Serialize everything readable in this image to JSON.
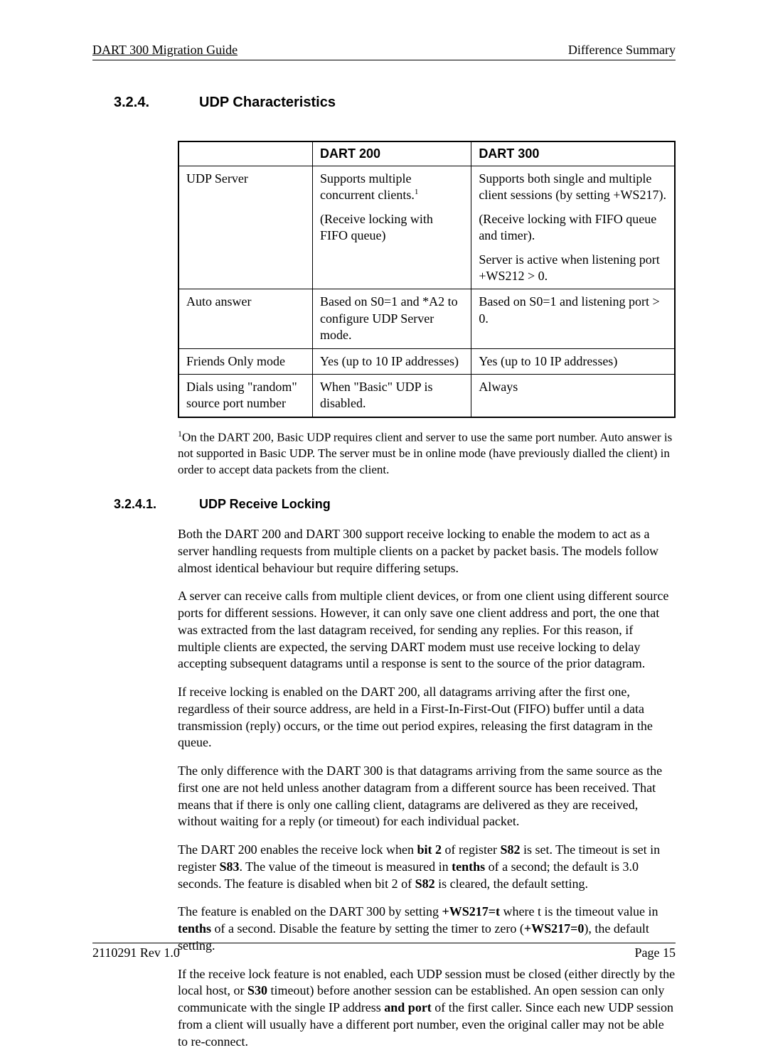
{
  "header": {
    "left": "DART 300 Migration Guide",
    "right": "Difference Summary"
  },
  "section": {
    "number": "3.2.4.",
    "title": "UDP Characteristics"
  },
  "table": {
    "columns": [
      "",
      "DART 200",
      "DART 300"
    ],
    "rows": [
      {
        "label": "UDP Server",
        "c1": [
          "Supports multiple concurrent clients.¹",
          "(Receive locking with FIFO queue)"
        ],
        "c2": [
          "Supports both single and multiple client sessions (by setting +WS217).",
          "(Receive locking with FIFO queue and timer).",
          "Server is active when listening port +WS212 > 0."
        ]
      },
      {
        "label": "Auto answer",
        "c1": [
          "Based on S0=1 and *A2 to configure UDP Server mode."
        ],
        "c2": [
          "Based on S0=1 and listening port > 0."
        ]
      },
      {
        "label": "Friends Only mode",
        "c1": [
          "Yes (up to 10 IP addresses)"
        ],
        "c2": [
          "Yes (up to 10 IP addresses)"
        ]
      },
      {
        "label": "Dials using \"random\" source port number",
        "c1": [
          "When \"Basic\" UDP is disabled."
        ],
        "c2": [
          "Always"
        ]
      }
    ]
  },
  "footnote": "¹On the DART 200, Basic UDP requires client and server to use the same port number.  Auto answer is not supported in Basic UDP.  The server must be in online mode (have previously dialled the client) in order to accept data packets from the client.",
  "subsection": {
    "number": "3.2.4.1.",
    "title": "UDP Receive Locking"
  },
  "paragraphs": [
    {
      "runs": [
        {
          "t": "Both the DART 200 and DART 300 support receive locking to enable the modem to act as a server handling requests from multiple clients on a packet by packet basis.  The models follow almost identical behaviour but require differing setups."
        }
      ]
    },
    {
      "runs": [
        {
          "t": "A server can receive calls from multiple client devices, or from one client using different source ports for different sessions.  However, it can only save one client address and port, the one that was extracted from the last datagram received, for sending any replies.  For this reason, if multiple clients are expected, the serving DART modem must use receive locking to delay accepting subsequent datagrams until a response is sent to the source of the prior datagram."
        }
      ]
    },
    {
      "runs": [
        {
          "t": "If receive locking is enabled on the DART 200, all datagrams arriving after the first one, regardless of their source address, are held in a First-In-First-Out (FIFO) buffer until a data transmission (reply) occurs, or the time out period expires, releasing the first datagram in the queue."
        }
      ]
    },
    {
      "runs": [
        {
          "t": "The only difference with the DART 300 is that datagrams arriving from the same source as the first one are not held unless another datagram from a different source has been received.  That means that if there is only one calling client, datagrams are delivered as they are received, without waiting for a reply (or timeout) for each individual packet."
        }
      ]
    },
    {
      "runs": [
        {
          "t": "The DART 200 enables the receive lock when "
        },
        {
          "t": "bit 2",
          "b": true
        },
        {
          "t": " of register "
        },
        {
          "t": "S82",
          "b": true
        },
        {
          "t": " is set.  The timeout is set in register "
        },
        {
          "t": "S83",
          "b": true
        },
        {
          "t": ".  The value of the timeout is measured in "
        },
        {
          "t": "tenths",
          "b": true
        },
        {
          "t": " of a second; the default is 3.0 seconds.  The feature is disabled when bit 2 of "
        },
        {
          "t": "S82",
          "b": true
        },
        {
          "t": " is cleared, the default setting."
        }
      ]
    },
    {
      "runs": [
        {
          "t": "The feature is enabled on the DART 300 by setting "
        },
        {
          "t": "+WS217=t",
          "b": true
        },
        {
          "t": " where t is the timeout value in "
        },
        {
          "t": "tenths",
          "b": true
        },
        {
          "t": " of a second.  Disable the feature by setting the timer to zero ("
        },
        {
          "t": "+WS217=0",
          "b": true
        },
        {
          "t": "), the default setting."
        }
      ]
    },
    {
      "runs": [
        {
          "t": "If the receive lock feature is not enabled, each UDP session must be closed (either directly by the local host, or "
        },
        {
          "t": "S30",
          "b": true
        },
        {
          "t": " timeout) before another session can be established.  An open session can only communicate with the single IP address "
        },
        {
          "t": "and port",
          "b": true
        },
        {
          "t": " of the first caller.  Since each new UDP session from a client will usually have a different port number, even the original caller may not be able to re-connect."
        }
      ]
    }
  ],
  "footer": {
    "left": "2110291 Rev 1.0",
    "right": "Page 15"
  }
}
